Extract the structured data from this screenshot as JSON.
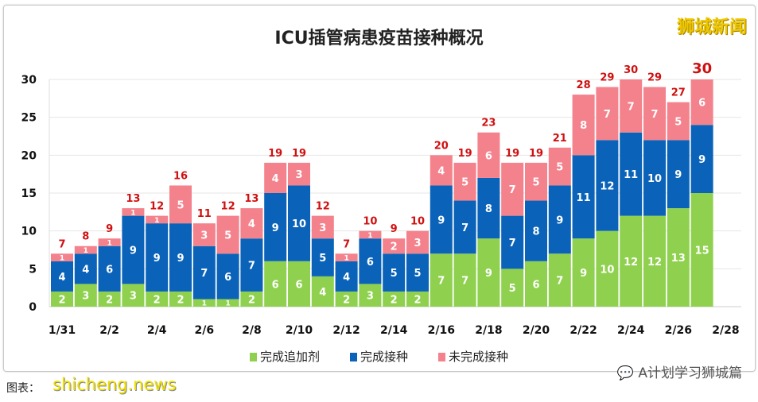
{
  "brand": "狮城新闻",
  "wechat": "A计划学习狮城篇",
  "caption": "图表：",
  "watermark": "shicheng.news",
  "chart_data": {
    "type": "bar",
    "stacked": true,
    "title": "ICU插管病患疫苗接种概况",
    "categories": [
      "1/31",
      "2/1",
      "2/2",
      "2/3",
      "2/4",
      "2/5",
      "2/6",
      "2/7",
      "2/8",
      "2/9",
      "2/10",
      "2/11",
      "2/12",
      "2/13",
      "2/14",
      "2/15",
      "2/16",
      "2/17",
      "2/18",
      "2/19",
      "2/20",
      "2/21",
      "2/22",
      "2/23",
      "2/24",
      "2/25",
      "2/26",
      "2/27"
    ],
    "xtick_labels": [
      "1/31",
      "2/2",
      "2/4",
      "2/6",
      "2/8",
      "2/10",
      "2/12",
      "2/14",
      "2/16",
      "2/18",
      "2/20",
      "2/22",
      "2/24",
      "2/26",
      "2/28"
    ],
    "yticks": [
      0,
      5,
      10,
      15,
      20,
      25,
      30
    ],
    "ylim": [
      0,
      30
    ],
    "grid": true,
    "legend_position": "bottom",
    "series": [
      {
        "name": "完成追加剂",
        "color": "#8fd14f",
        "values": [
          2,
          3,
          2,
          3,
          2,
          2,
          1,
          1,
          2,
          6,
          6,
          4,
          2,
          3,
          2,
          2,
          7,
          7,
          9,
          5,
          6,
          7,
          9,
          10,
          12,
          12,
          13,
          15
        ]
      },
      {
        "name": "完成接种",
        "color": "#0a63b8",
        "values": [
          4,
          4,
          6,
          9,
          9,
          9,
          7,
          6,
          7,
          9,
          10,
          5,
          4,
          6,
          5,
          5,
          9,
          7,
          8,
          7,
          8,
          9,
          11,
          12,
          11,
          10,
          9,
          9
        ]
      },
      {
        "name": "未完成接种",
        "color": "#f4828c",
        "values": [
          1,
          1,
          1,
          1,
          1,
          5,
          3,
          5,
          4,
          4,
          3,
          3,
          1,
          1,
          2,
          3,
          4,
          5,
          6,
          7,
          5,
          5,
          8,
          7,
          7,
          7,
          5,
          6
        ]
      }
    ],
    "totals": [
      7,
      8,
      9,
      13,
      12,
      16,
      11,
      12,
      13,
      19,
      19,
      12,
      7,
      10,
      9,
      10,
      20,
      19,
      23,
      19,
      19,
      21,
      28,
      29,
      30,
      29,
      27,
      30
    ],
    "total_label_color": "#d01010"
  }
}
